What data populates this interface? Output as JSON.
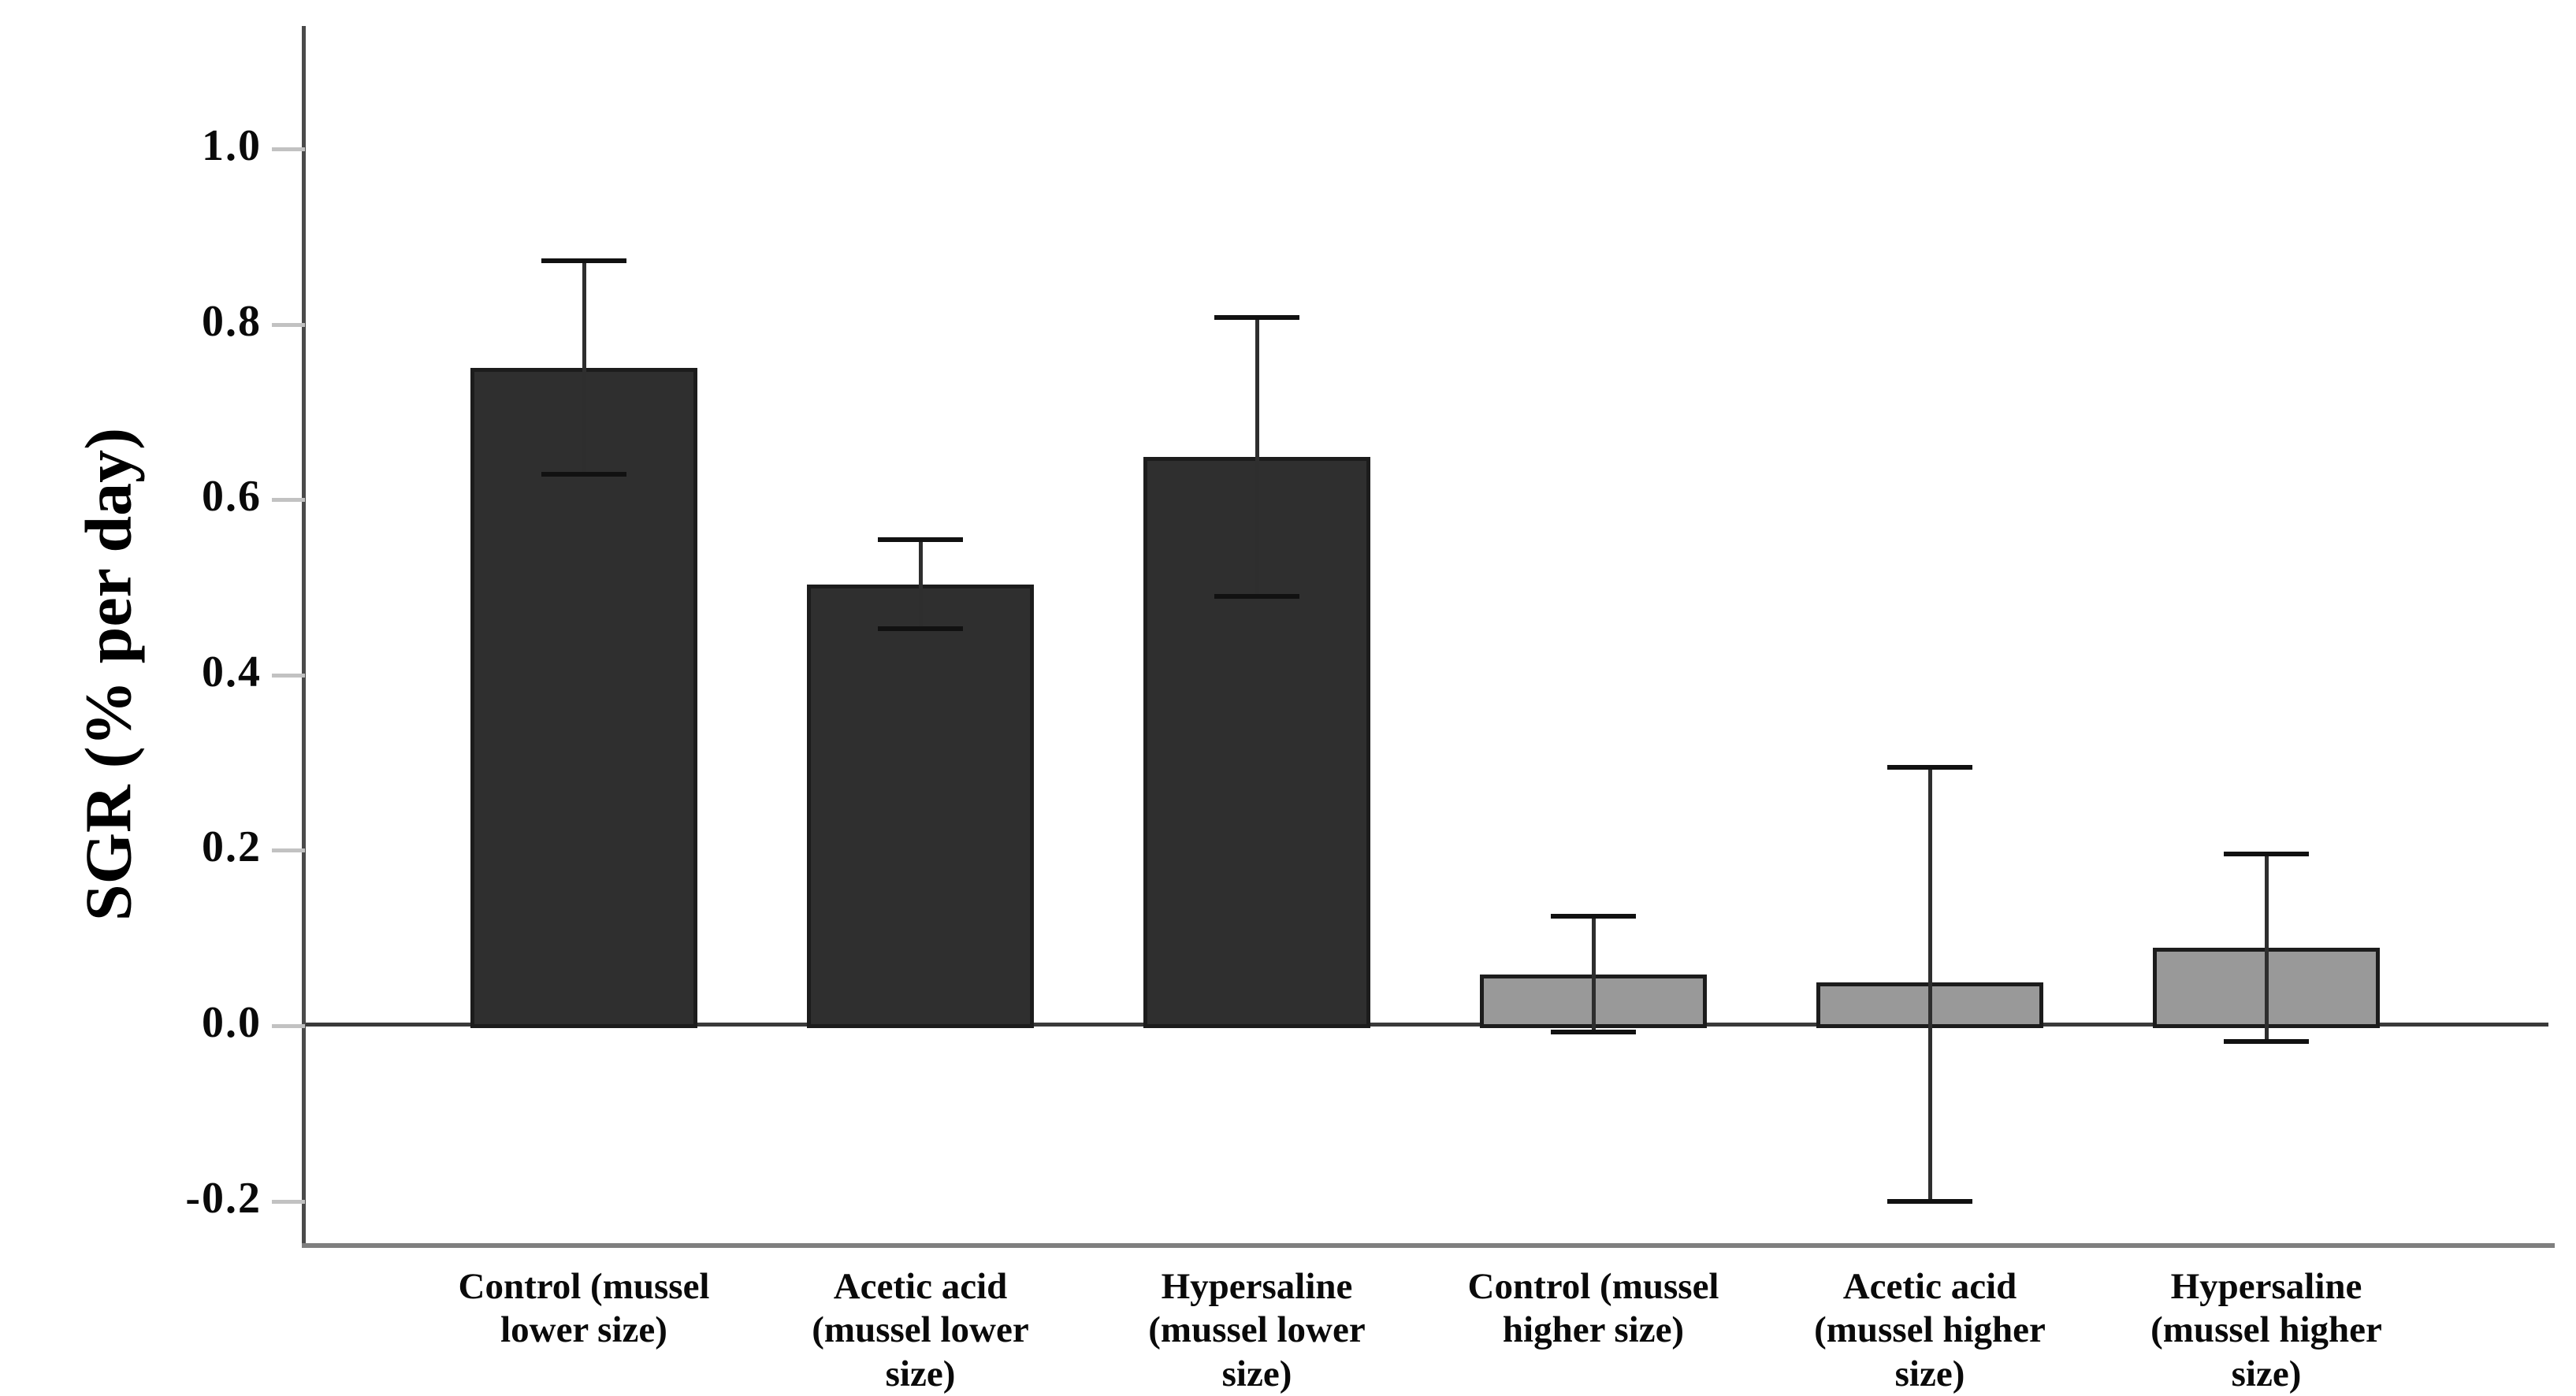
{
  "chart_data": {
    "type": "bar",
    "title": "",
    "xlabel": "",
    "ylabel": "SGR (% per day)",
    "ylim": [
      -0.25,
      1.14
    ],
    "grid": false,
    "legend": "none",
    "yticks": [
      {
        "value": 1.0,
        "label": "1.0"
      },
      {
        "value": 0.8,
        "label": "0.8"
      },
      {
        "value": 0.6,
        "label": "0.6"
      },
      {
        "value": 0.4,
        "label": "0.4"
      },
      {
        "value": 0.2,
        "label": "0.2"
      },
      {
        "value": 0.0,
        "label": "0.0"
      },
      {
        "value": -0.2,
        "label": "-0.2"
      }
    ],
    "categories": [
      "Control (mussel lower size)",
      "Acetic acid (mussel lower size)",
      "Hypersaline (mussel lower size)",
      "Control (mussel higher size)",
      "Acetic acid (mussel higher size)",
      "Hypersaline (mussel higher size)"
    ],
    "category_label_lines": [
      [
        "Control (mussel",
        "lower size)"
      ],
      [
        "Acetic acid",
        "(mussel lower",
        "size)"
      ],
      [
        "Hypersaline",
        "(mussel lower",
        "size)"
      ],
      [
        "Control (mussel",
        "higher size)"
      ],
      [
        "Acetic acid",
        "(mussel higher",
        "size)"
      ],
      [
        "Hypersaline",
        "(mussel higher",
        "size)"
      ]
    ],
    "values": [
      0.75,
      0.503,
      0.649,
      0.058,
      0.049,
      0.089
    ],
    "error_low": [
      0.629,
      0.453,
      0.49,
      -0.007,
      -0.2,
      -0.018
    ],
    "error_high": [
      0.872,
      0.554,
      0.808,
      0.125,
      0.295,
      0.196
    ],
    "bar_fill_colors": [
      "#2f2f2f",
      "#2f2f2f",
      "#2f2f2f",
      "#999999",
      "#999999",
      "#999999"
    ],
    "style_colors": {
      "bar_border": "#1c1c1c",
      "dark_bar_fill": "#2f2f2f",
      "gray_bar_fill": "#999999",
      "error_bar": "#2e2e2e",
      "zero_line": "#3a3a3a",
      "axis_line": "#4a4a4a",
      "frame_line": "#7f7f7f",
      "tick_mark": "#c2c2c2",
      "text": "#0a0a0a",
      "background": "#ffffff"
    }
  }
}
